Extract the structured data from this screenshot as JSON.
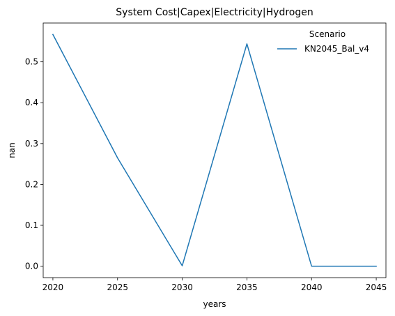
{
  "chart_data": {
    "type": "line",
    "title": "System Cost|Capex|Electricity|Hydrogen",
    "xlabel": "years",
    "ylabel": "nan",
    "x": [
      2020,
      2025,
      2030,
      2035,
      2040,
      2045
    ],
    "xticks": [
      "2020",
      "2025",
      "2030",
      "2035",
      "2040",
      "2045"
    ],
    "yticks": [
      "0.0",
      "0.1",
      "0.2",
      "0.3",
      "0.4",
      "0.5"
    ],
    "xlim": [
      2019.25,
      2045.75
    ],
    "ylim": [
      -0.028,
      0.595
    ],
    "grid": false,
    "legend": {
      "title": "Scenario",
      "placement": "top-right"
    },
    "series": [
      {
        "name": "KN2045_Bal_v4",
        "color": "#1f77b4",
        "values": [
          0.567,
          0.265,
          0.001,
          0.544,
          0.0,
          0.0
        ]
      }
    ]
  }
}
